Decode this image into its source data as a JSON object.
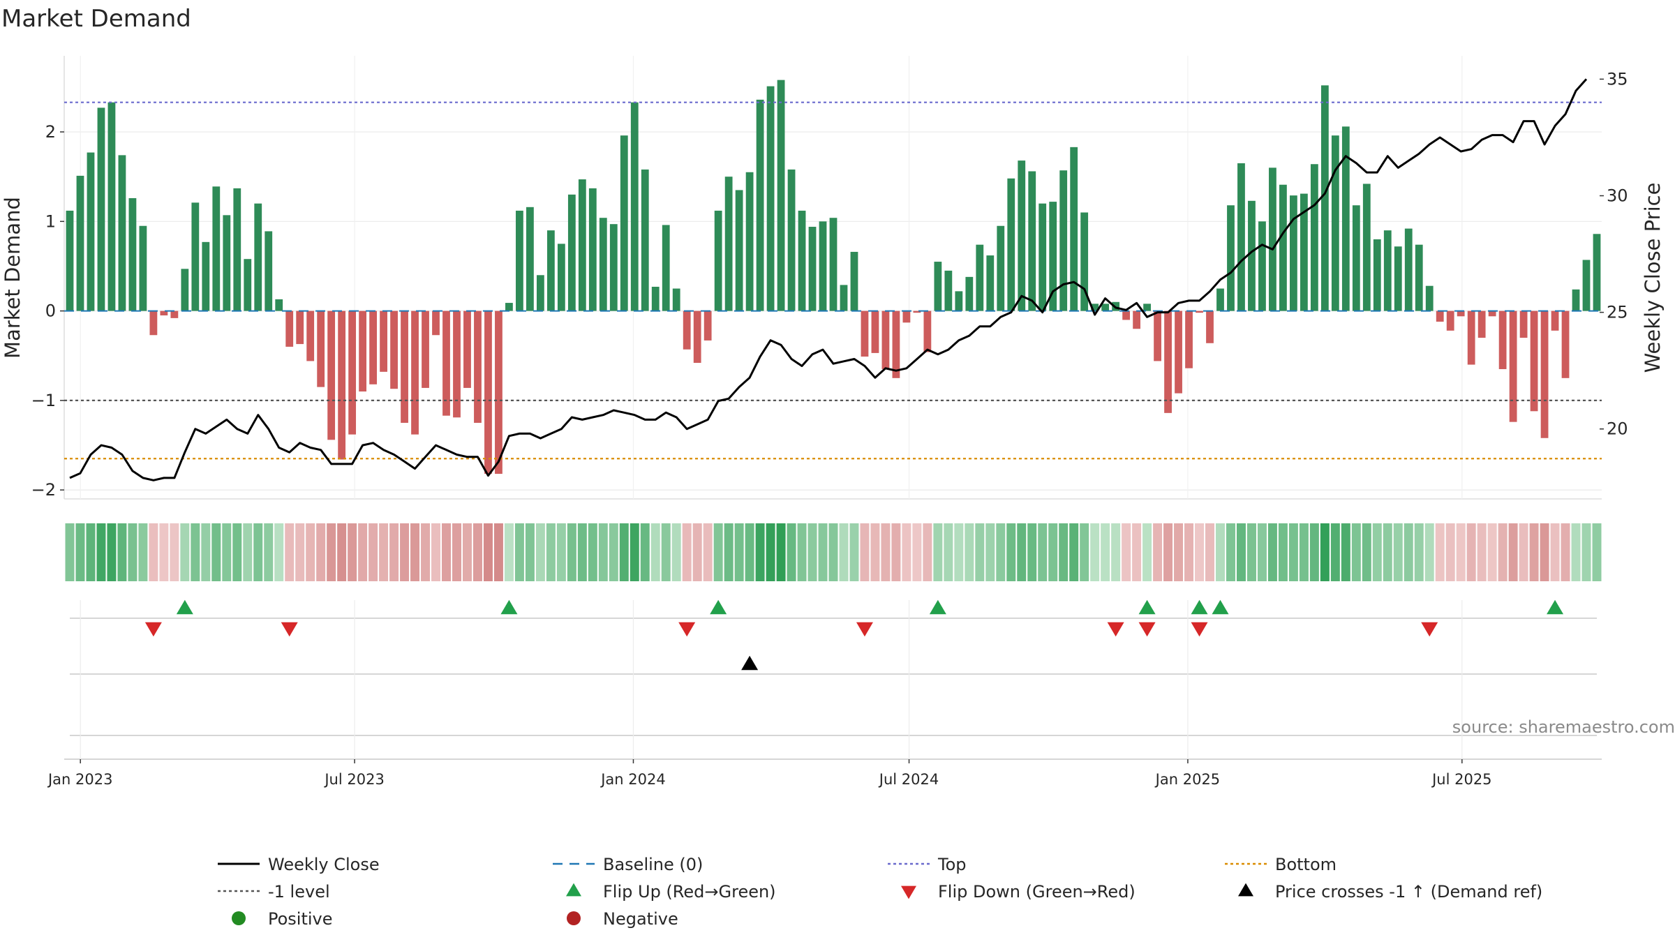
{
  "title": "Market Demand",
  "source": "source: sharemaestro.com",
  "colors": {
    "positive_bar": "#2e8b57",
    "negative_bar": "#cd5c5c",
    "close_line": "#000000",
    "baseline": "#1f77b4",
    "top": "#6a6acd",
    "bottom": "#d98c00",
    "minus1": "#555555",
    "flip_up": "#22a04b",
    "flip_down": "#d62728",
    "price_cross": "#000000",
    "positive_dot": "#228b22",
    "negative_dot": "#b22222"
  },
  "chart_data": {
    "type": "bar",
    "title": "Market Demand",
    "ylabel": "Market Demand",
    "y2label": "Weekly Close Price",
    "ylim": [
      -2.1,
      2.85
    ],
    "y2lim": [
      17,
      36
    ],
    "yticks": [
      -2,
      -1,
      0,
      1,
      2
    ],
    "yticklabels": [
      "−2",
      "−1",
      "0",
      "1",
      "2"
    ],
    "y2ticks": [
      20,
      25,
      30,
      35
    ],
    "y2ticklabels": [
      "20",
      "25",
      "30",
      "35"
    ],
    "start_date": "2022-12-25",
    "end_date": "2025-09-28",
    "xticks": [
      {
        "date": "2023-01-01",
        "label": "Jan 2023"
      },
      {
        "date": "2023-07-01",
        "label": "Jul 2023"
      },
      {
        "date": "2024-01-01",
        "label": "Jan 2024"
      },
      {
        "date": "2024-07-01",
        "label": "Jul 2024"
      },
      {
        "date": "2025-01-01",
        "label": "Jan 2025"
      },
      {
        "date": "2025-07-01",
        "label": "Jul 2025"
      }
    ],
    "reference_lines": {
      "top": 2.33,
      "bottom": -1.65,
      "minus1": -1,
      "baseline": 0
    },
    "demand": [
      1.12,
      1.51,
      1.77,
      2.27,
      2.33,
      1.74,
      1.26,
      0.95,
      -0.27,
      -0.05,
      -0.08,
      0.47,
      1.21,
      0.77,
      1.39,
      1.07,
      1.37,
      0.58,
      1.2,
      0.89,
      0.13,
      -0.4,
      -0.37,
      -0.56,
      -0.85,
      -1.44,
      -1.66,
      -1.38,
      -0.9,
      -0.82,
      -0.68,
      -0.87,
      -1.25,
      -1.38,
      -0.86,
      -0.27,
      -1.17,
      -1.19,
      -0.86,
      -1.25,
      -1.82,
      -1.82,
      0.09,
      1.12,
      1.16,
      0.4,
      0.9,
      0.75,
      1.3,
      1.47,
      1.37,
      1.04,
      0.97,
      1.96,
      2.33,
      1.58,
      0.27,
      0.96,
      0.25,
      -0.43,
      -0.58,
      -0.33,
      1.12,
      1.5,
      1.35,
      1.55,
      2.36,
      2.51,
      2.58,
      1.58,
      1.12,
      0.94,
      1.0,
      1.04,
      0.29,
      0.66,
      -0.51,
      -0.47,
      -0.65,
      -0.75,
      -0.13,
      -0.02,
      -0.46,
      0.55,
      0.45,
      0.22,
      0.38,
      0.74,
      0.62,
      0.95,
      1.48,
      1.68,
      1.56,
      1.2,
      1.22,
      1.57,
      1.83,
      1.1,
      0.08,
      0.08,
      0.1,
      -0.1,
      -0.2,
      0.08,
      -0.56,
      -1.14,
      -0.92,
      -0.64,
      -0.02,
      -0.36,
      0.25,
      1.18,
      1.65,
      1.23,
      1.0,
      1.6,
      1.41,
      1.29,
      1.31,
      1.64,
      2.52,
      1.96,
      2.06,
      1.18,
      1.42,
      0.8,
      0.9,
      0.72,
      0.92,
      0.74,
      0.28,
      -0.12,
      -0.22,
      -0.06,
      -0.6,
      -0.3,
      -0.06,
      -0.65,
      -1.24,
      -0.3,
      -1.12,
      -1.42,
      -0.22,
      -0.75,
      0.24,
      0.57,
      0.86
    ],
    "weekly_close": [
      17.9,
      18.1,
      18.9,
      19.3,
      19.2,
      18.9,
      18.2,
      17.9,
      17.8,
      17.9,
      17.9,
      19.0,
      20.0,
      19.8,
      20.1,
      20.4,
      20.0,
      19.8,
      20.6,
      20.0,
      19.2,
      19.0,
      19.4,
      19.2,
      19.1,
      18.5,
      18.5,
      18.5,
      19.3,
      19.4,
      19.1,
      18.9,
      18.6,
      18.3,
      18.8,
      19.3,
      19.1,
      18.9,
      18.8,
      18.8,
      18.0,
      18.6,
      19.7,
      19.8,
      19.8,
      19.6,
      19.8,
      20.0,
      20.5,
      20.4,
      20.5,
      20.6,
      20.8,
      20.7,
      20.6,
      20.4,
      20.4,
      20.7,
      20.5,
      20.0,
      20.2,
      20.4,
      21.2,
      21.3,
      21.8,
      22.2,
      23.1,
      23.8,
      23.6,
      23.0,
      22.7,
      23.2,
      23.4,
      22.8,
      22.9,
      23.0,
      22.7,
      22.2,
      22.6,
      22.5,
      22.6,
      23.0,
      23.4,
      23.2,
      23.4,
      23.8,
      24.0,
      24.4,
      24.4,
      24.8,
      25.0,
      25.7,
      25.5,
      25.0,
      25.9,
      26.2,
      26.3,
      26.0,
      24.9,
      25.6,
      25.2,
      25.1,
      25.4,
      24.8,
      25.0,
      25.0,
      25.4,
      25.5,
      25.5,
      25.9,
      26.4,
      26.7,
      27.2,
      27.6,
      27.9,
      27.7,
      28.4,
      29.0,
      29.3,
      29.6,
      30.1,
      31.1,
      31.7,
      31.4,
      31.0,
      31.0,
      31.7,
      31.2,
      31.5,
      31.8,
      32.2,
      32.5,
      32.2,
      31.9,
      32.0,
      32.4,
      32.6,
      32.6,
      32.3,
      33.2,
      33.2,
      32.2,
      33.0,
      33.5,
      34.5,
      35.0
    ]
  },
  "heat_strip": {
    "label": "demand heat strip"
  },
  "signals": {
    "flip_up_weeks": [
      11,
      42,
      62,
      83,
      103,
      108,
      110,
      142
    ],
    "flip_down_weeks": [
      8,
      21,
      59,
      76,
      100,
      103,
      108,
      130
    ],
    "price_cross_weeks": [
      65
    ]
  },
  "legend": [
    {
      "key": "close",
      "label": "Weekly Close"
    },
    {
      "key": "baseline",
      "label": "Baseline (0)"
    },
    {
      "key": "top",
      "label": "Top"
    },
    {
      "key": "bottom",
      "label": "Bottom"
    },
    {
      "key": "minus1",
      "label": "-1 level"
    },
    {
      "key": "flip_up",
      "label": "Flip Up (Red→Green)"
    },
    {
      "key": "flip_down",
      "label": "Flip Down (Green→Red)"
    },
    {
      "key": "price_cross",
      "label": "Price crosses -1 ↑ (Demand ref)"
    },
    {
      "key": "positive",
      "label": "Positive"
    },
    {
      "key": "negative",
      "label": "Negative"
    }
  ]
}
